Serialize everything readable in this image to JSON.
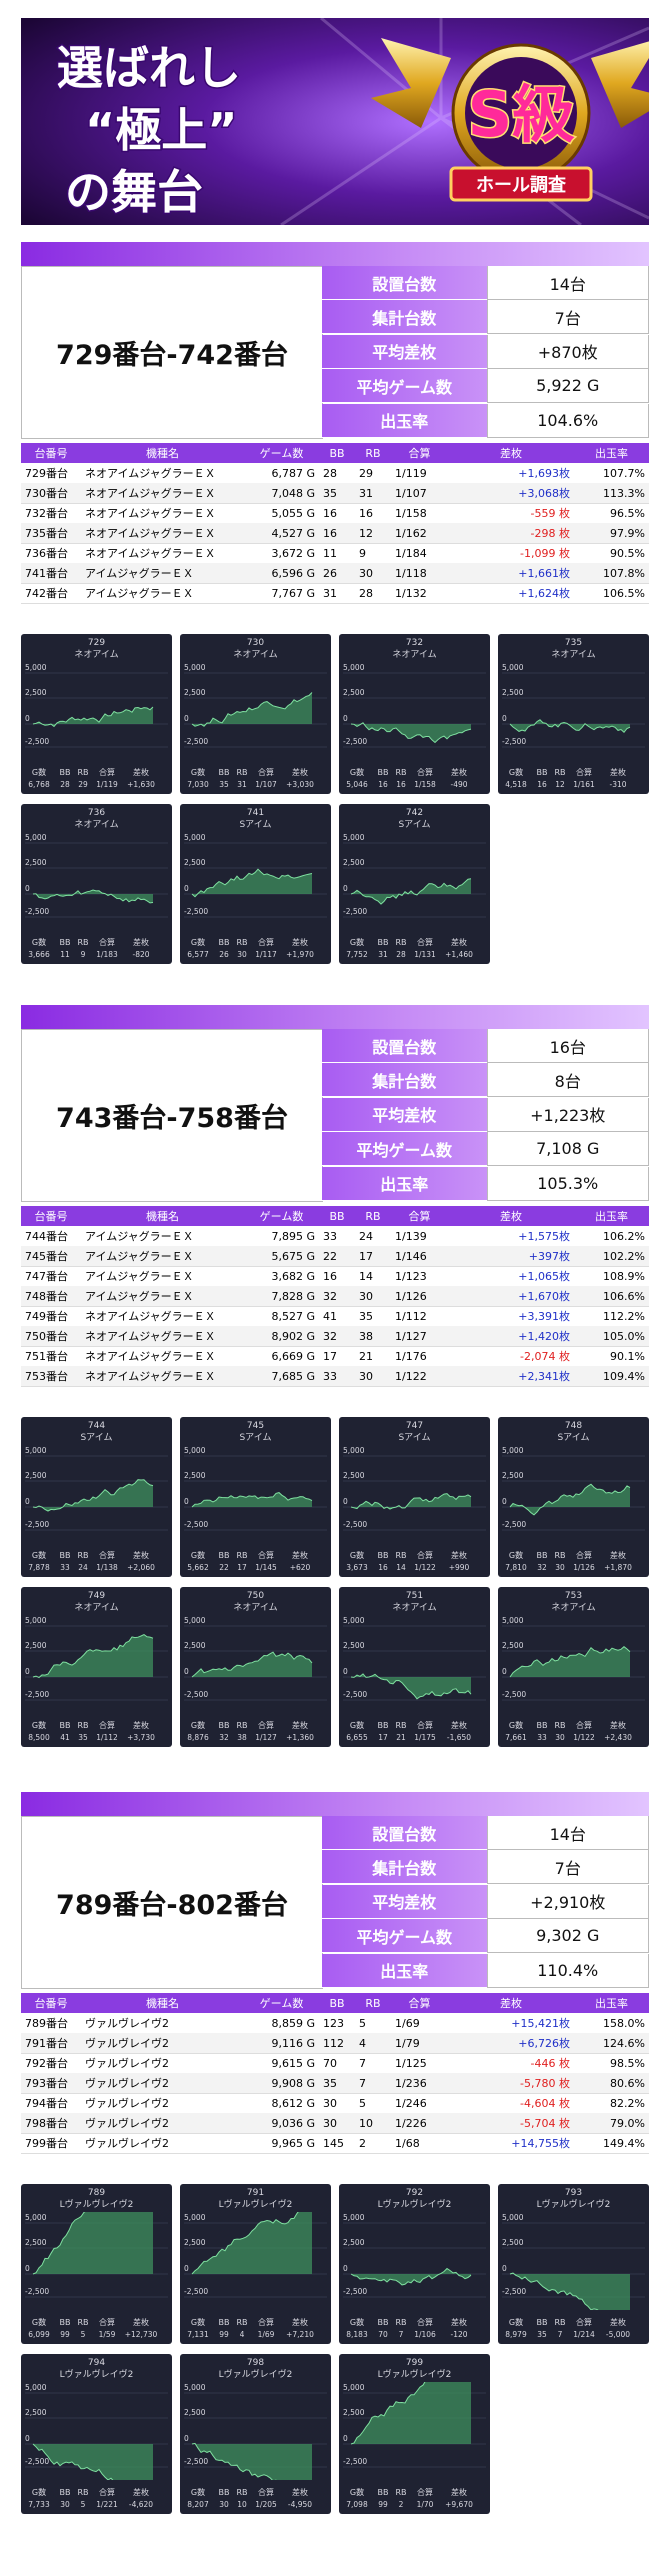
{
  "banner": {
    "line1": "選ばれし",
    "line2": "“極上”",
    "line3": "の舞台",
    "badge": "S級",
    "badge_sub": "ホール調査"
  },
  "summary_labels": [
    "設置台数",
    "集計台数",
    "平均差枚",
    "平均ゲーム数",
    "出玉率"
  ],
  "table_header": [
    "台番号",
    "機種名",
    "ゲーム数",
    "BB",
    "RB",
    "合算",
    "差枚",
    "出玉率"
  ],
  "card_axis_labels": [
    "5,000",
    "2,500",
    "0",
    "-2,500"
  ],
  "card_stat_labels": [
    "G数",
    "BB",
    "RB",
    "合算",
    "差枚"
  ],
  "sections": [
    {
      "range": "729番台-742番台",
      "summary": [
        "14台",
        "7台",
        "+870枚",
        "5,922 G",
        "104.6%"
      ],
      "rows": [
        [
          "729番台",
          "ネオアイムジャグラーＥＸ",
          "6,787 G",
          "28",
          "29",
          "1/119",
          "+1,693枚",
          "107.7%"
        ],
        [
          "730番台",
          "ネオアイムジャグラーＥＸ",
          "7,048 G",
          "35",
          "31",
          "1/107",
          "+3,068枚",
          "113.3%"
        ],
        [
          "732番台",
          "ネオアイムジャグラーＥＸ",
          "5,055 G",
          "16",
          "16",
          "1/158",
          "-559 枚",
          "96.5%"
        ],
        [
          "735番台",
          "ネオアイムジャグラーＥＸ",
          "4,527 G",
          "16",
          "12",
          "1/162",
          "-298 枚",
          "97.9%"
        ],
        [
          "736番台",
          "ネオアイムジャグラーＥＸ",
          "3,672 G",
          "11",
          "9",
          "1/184",
          "-1,099 枚",
          "90.5%"
        ],
        [
          "741番台",
          "アイムジャグラーＥＸ",
          "6,596 G",
          "26",
          "30",
          "1/118",
          "+1,661枚",
          "107.8%"
        ],
        [
          "742番台",
          "アイムジャグラーＥＸ",
          "7,767 G",
          "31",
          "28",
          "1/132",
          "+1,624枚",
          "106.5%"
        ]
      ],
      "cards": [
        {
          "number": "729",
          "name": "ネオアイム",
          "stats": [
            "6,768",
            "28",
            "29",
            "1/119",
            "+1,630"
          ]
        },
        {
          "number": "730",
          "name": "ネオアイム",
          "stats": [
            "7,030",
            "35",
            "31",
            "1/107",
            "+3,030"
          ]
        },
        {
          "number": "732",
          "name": "ネオアイム",
          "stats": [
            "5,046",
            "16",
            "16",
            "1/158",
            "-490"
          ]
        },
        {
          "number": "735",
          "name": "ネオアイム",
          "stats": [
            "4,518",
            "16",
            "12",
            "1/161",
            "-310"
          ]
        },
        {
          "number": "736",
          "name": "ネオアイム",
          "stats": [
            "3,666",
            "11",
            "9",
            "1/183",
            "-820"
          ]
        },
        {
          "number": "741",
          "name": "Sアイム",
          "stats": [
            "6,577",
            "26",
            "30",
            "1/117",
            "+1,970"
          ]
        },
        {
          "number": "742",
          "name": "Sアイム",
          "stats": [
            "7,752",
            "31",
            "28",
            "1/131",
            "+1,460"
          ]
        }
      ]
    },
    {
      "range": "743番台-758番台",
      "summary": [
        "16台",
        "8台",
        "+1,223枚",
        "7,108 G",
        "105.3%"
      ],
      "rows": [
        [
          "744番台",
          "アイムジャグラーＥＸ",
          "7,895 G",
          "33",
          "24",
          "1/139",
          "+1,575枚",
          "106.2%"
        ],
        [
          "745番台",
          "アイムジャグラーＥＸ",
          "5,675 G",
          "22",
          "17",
          "1/146",
          "+397枚",
          "102.2%"
        ],
        [
          "747番台",
          "アイムジャグラーＥＸ",
          "3,682 G",
          "16",
          "14",
          "1/123",
          "+1,065枚",
          "108.9%"
        ],
        [
          "748番台",
          "アイムジャグラーＥＸ",
          "7,828 G",
          "32",
          "30",
          "1/126",
          "+1,670枚",
          "106.6%"
        ],
        [
          "749番台",
          "ネオアイムジャグラーＥＸ",
          "8,527 G",
          "41",
          "35",
          "1/112",
          "+3,391枚",
          "112.2%"
        ],
        [
          "750番台",
          "ネオアイムジャグラーＥＸ",
          "8,902 G",
          "32",
          "38",
          "1/127",
          "+1,420枚",
          "105.0%"
        ],
        [
          "751番台",
          "ネオアイムジャグラーＥＸ",
          "6,669 G",
          "17",
          "21",
          "1/176",
          "-2,074 枚",
          "90.1%"
        ],
        [
          "753番台",
          "ネオアイムジャグラーＥＸ",
          "7,685 G",
          "33",
          "30",
          "1/122",
          "+2,341枚",
          "109.4%"
        ]
      ],
      "cards": [
        {
          "number": "744",
          "name": "Sアイム",
          "stats": [
            "7,878",
            "33",
            "24",
            "1/138",
            "+2,060"
          ]
        },
        {
          "number": "745",
          "name": "Sアイム",
          "stats": [
            "5,662",
            "22",
            "17",
            "1/145",
            "+620"
          ]
        },
        {
          "number": "747",
          "name": "Sアイム",
          "stats": [
            "3,673",
            "16",
            "14",
            "1/122",
            "+990"
          ]
        },
        {
          "number": "748",
          "name": "Sアイム",
          "stats": [
            "7,810",
            "32",
            "30",
            "1/126",
            "+1,870"
          ]
        },
        {
          "number": "749",
          "name": "ネオアイム",
          "stats": [
            "8,500",
            "41",
            "35",
            "1/112",
            "+3,730"
          ]
        },
        {
          "number": "750",
          "name": "ネオアイム",
          "stats": [
            "8,876",
            "32",
            "38",
            "1/127",
            "+1,360"
          ]
        },
        {
          "number": "751",
          "name": "ネオアイム",
          "stats": [
            "6,655",
            "17",
            "21",
            "1/175",
            "-1,650"
          ]
        },
        {
          "number": "753",
          "name": "ネオアイム",
          "stats": [
            "7,661",
            "33",
            "30",
            "1/122",
            "+2,430"
          ]
        }
      ]
    },
    {
      "range": "789番台-802番台",
      "summary": [
        "14台",
        "7台",
        "+2,910枚",
        "9,302 G",
        "110.4%"
      ],
      "rows": [
        [
          "789番台",
          "ヴァルヴレイヴ2",
          "8,859 G",
          "123",
          "5",
          "1/69",
          "+15,421枚",
          "158.0%"
        ],
        [
          "791番台",
          "ヴァルヴレイヴ2",
          "9,116 G",
          "112",
          "4",
          "1/79",
          "+6,726枚",
          "124.6%"
        ],
        [
          "792番台",
          "ヴァルヴレイヴ2",
          "9,615 G",
          "70",
          "7",
          "1/125",
          "-446 枚",
          "98.5%"
        ],
        [
          "793番台",
          "ヴァルヴレイヴ2",
          "9,908 G",
          "35",
          "7",
          "1/236",
          "-5,780 枚",
          "80.6%"
        ],
        [
          "794番台",
          "ヴァルヴレイヴ2",
          "8,612 G",
          "30",
          "5",
          "1/246",
          "-4,604 枚",
          "82.2%"
        ],
        [
          "798番台",
          "ヴァルヴレイヴ2",
          "9,036 G",
          "30",
          "10",
          "1/226",
          "-5,704 枚",
          "79.0%"
        ],
        [
          "799番台",
          "ヴァルヴレイヴ2",
          "9,965 G",
          "145",
          "2",
          "1/68",
          "+14,755枚",
          "149.4%"
        ]
      ],
      "cards": [
        {
          "number": "789",
          "name": "Lヴァルヴレイヴ2",
          "stats": [
            "6,099",
            "99",
            "5",
            "1/59",
            "+12,730"
          ]
        },
        {
          "number": "791",
          "name": "Lヴァルヴレイヴ2",
          "stats": [
            "7,131",
            "99",
            "4",
            "1/69",
            "+7,210"
          ]
        },
        {
          "number": "792",
          "name": "Lヴァルヴレイヴ2",
          "stats": [
            "8,183",
            "70",
            "7",
            "1/106",
            "-120"
          ]
        },
        {
          "number": "793",
          "name": "Lヴァルヴレイヴ2",
          "stats": [
            "8,979",
            "35",
            "7",
            "1/214",
            "-5,000"
          ]
        },
        {
          "number": "794",
          "name": "Lヴァルヴレイヴ2",
          "stats": [
            "7,733",
            "30",
            "5",
            "1/221",
            "-4,620"
          ]
        },
        {
          "number": "798",
          "name": "Lヴァルヴレイヴ2",
          "stats": [
            "8,207",
            "30",
            "10",
            "1/205",
            "-4,950"
          ]
        },
        {
          "number": "799",
          "name": "Lヴァルヴレイヴ2",
          "stats": [
            "7,098",
            "99",
            "2",
            "1/70",
            "+9,670"
          ]
        }
      ]
    }
  ]
}
